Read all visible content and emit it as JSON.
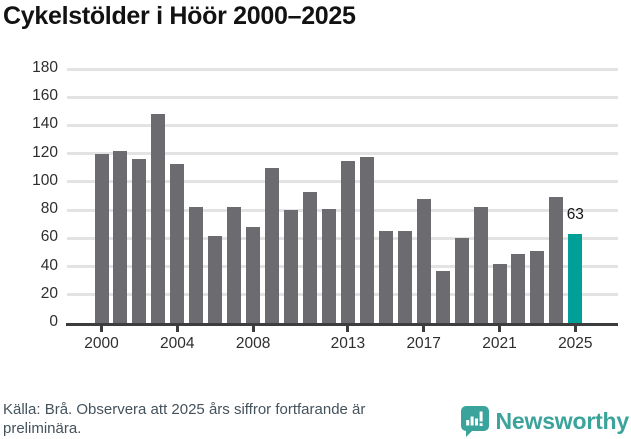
{
  "title": "Cykelstölder i Höör 2000–2025",
  "footer": {
    "source_lines": [
      "Källa: Brå. Observera att 2025 års siffror fortfarande är",
      "preliminära."
    ],
    "brand": "Newsworthy"
  },
  "icons": {
    "brand_icon": "newsworthy-speech-bubble-bar-chart"
  },
  "colors": {
    "bar": "#6b6b70",
    "highlight": "#00a099",
    "grid": "#e3e3e3",
    "axis": "#3d3d3d",
    "title": "#121212",
    "tick": "#2e2e2e",
    "footer_text": "#44525c",
    "brand": "#3aa39b"
  },
  "chart_data": {
    "type": "bar",
    "title": "Cykelstölder i Höör 2000–2025",
    "x": [
      2000,
      2001,
      2002,
      2003,
      2004,
      2005,
      2006,
      2007,
      2008,
      2009,
      2010,
      2011,
      2012,
      2013,
      2014,
      2015,
      2016,
      2017,
      2018,
      2019,
      2020,
      2021,
      2022,
      2023,
      2024,
      2025
    ],
    "values": [
      120,
      122,
      116,
      148,
      113,
      82,
      62,
      82,
      68,
      110,
      80,
      93,
      81,
      115,
      118,
      65,
      65,
      88,
      37,
      60,
      82,
      42,
      49,
      51,
      89,
      63
    ],
    "highlight_year": 2025,
    "highlight_value_label": "63",
    "xlabel": "",
    "ylabel": "",
    "ylim": [
      0,
      180
    ],
    "yticks": [
      0,
      20,
      40,
      60,
      80,
      100,
      120,
      140,
      160,
      180
    ],
    "xticks": [
      2000,
      2004,
      2008,
      2013,
      2017,
      2021,
      2025
    ],
    "grid": true,
    "legend": false
  }
}
